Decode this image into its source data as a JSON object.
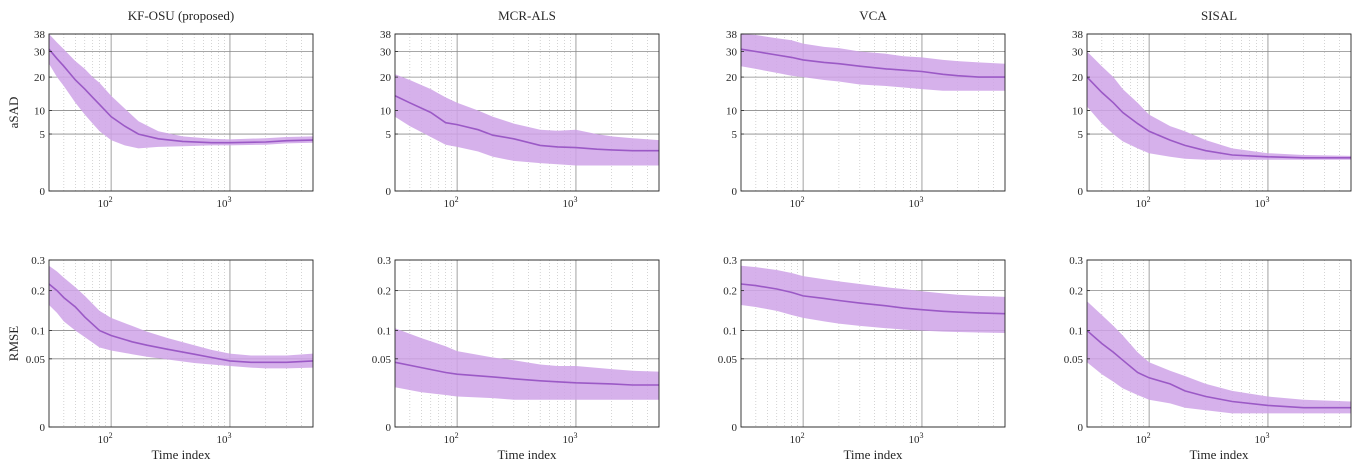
{
  "figure": {
    "xlabel": "Time index",
    "row_labels": [
      "aSAD",
      "RMSE"
    ]
  },
  "colors": {
    "band": "#cfa3e8",
    "line": "#9b59c6",
    "grid_major": "#8a8a8a",
    "grid_minor": "#b8b8b8",
    "axis": "#262626"
  },
  "chart_data": [
    {
      "type": "area",
      "title": "KF-OSU (proposed)",
      "ylabel": "aSAD",
      "xlabel": "",
      "x_scale": "log",
      "xlim": [
        30,
        5000
      ],
      "ylim": [
        0,
        38
      ],
      "y_scale": "sqrt",
      "yticks": [
        0,
        5,
        10,
        20,
        30,
        38
      ],
      "xtick_labels": [
        "10^2",
        "10^3"
      ],
      "grid": true,
      "series": [
        {
          "x": [
            30,
            35,
            40,
            50,
            60,
            70,
            80,
            100,
            130,
            170,
            250,
            400,
            700,
            1000,
            2000,
            3000,
            5000
          ],
          "mean": [
            31,
            27,
            24,
            19,
            16,
            13.5,
            11.5,
            8.5,
            6.5,
            5,
            4.2,
            3.8,
            3.6,
            3.6,
            3.7,
            3.9,
            4.0
          ],
          "lower": [
            25,
            20,
            17,
            12,
            9,
            7,
            5.5,
            4,
            3.2,
            2.8,
            3,
            3.1,
            3.2,
            3.2,
            3.3,
            3.5,
            3.6
          ],
          "upper": [
            38,
            34,
            31,
            26,
            23,
            20,
            18,
            14,
            10.5,
            7.5,
            5.5,
            4.6,
            4.2,
            4.1,
            4.3,
            4.5,
            4.6
          ]
        }
      ]
    },
    {
      "type": "area",
      "title": "MCR-ALS",
      "ylabel": "",
      "xlabel": "",
      "x_scale": "log",
      "xlim": [
        30,
        5000
      ],
      "ylim": [
        0,
        38
      ],
      "y_scale": "sqrt",
      "yticks": [
        0,
        5,
        10,
        20,
        30,
        38
      ],
      "xtick_labels": [
        "10^2",
        "10^3"
      ],
      "grid": true,
      "series": [
        {
          "x": [
            30,
            40,
            60,
            80,
            100,
            150,
            200,
            300,
            500,
            700,
            1000,
            1500,
            2000,
            3000,
            5000
          ],
          "mean": [
            14,
            12,
            9.5,
            7.2,
            6.8,
            5.8,
            4.8,
            4.2,
            3.2,
            3.0,
            2.9,
            2.7,
            2.6,
            2.5,
            2.5
          ],
          "lower": [
            8.5,
            6.5,
            4.5,
            3.3,
            3.0,
            2.4,
            1.8,
            1.4,
            1.2,
            1.1,
            1.0,
            1.0,
            1.0,
            1.0,
            1.0
          ],
          "upper": [
            21,
            19,
            16,
            13.5,
            12,
            10,
            8.5,
            7,
            5.8,
            5.6,
            5.8,
            5.0,
            4.6,
            4.3,
            4.0
          ]
        }
      ]
    },
    {
      "type": "area",
      "title": "VCA",
      "ylabel": "",
      "xlabel": "",
      "x_scale": "log",
      "xlim": [
        30,
        5000
      ],
      "ylim": [
        0,
        38
      ],
      "y_scale": "sqrt",
      "yticks": [
        0,
        5,
        10,
        20,
        30,
        38
      ],
      "xtick_labels": [
        "10^2",
        "10^3"
      ],
      "grid": true,
      "series": [
        {
          "x": [
            30,
            40,
            60,
            80,
            100,
            150,
            200,
            300,
            500,
            700,
            1000,
            1500,
            2000,
            3000,
            5000
          ],
          "mean": [
            31,
            30,
            28.5,
            27.5,
            26.5,
            25.5,
            25,
            24,
            23,
            22.5,
            22,
            21,
            20.5,
            20,
            20
          ],
          "lower": [
            24,
            23,
            21.5,
            20.5,
            20,
            19,
            18.5,
            17.5,
            17,
            16.5,
            16,
            15.5,
            15.5,
            15.5,
            15.5
          ],
          "upper": [
            38,
            37.5,
            36,
            35,
            33.5,
            32,
            31.5,
            30,
            29,
            28,
            27.5,
            26.5,
            26,
            25.5,
            25
          ]
        }
      ]
    },
    {
      "type": "area",
      "title": "SISAL",
      "ylabel": "",
      "xlabel": "",
      "x_scale": "log",
      "xlim": [
        30,
        5000
      ],
      "ylim": [
        0,
        38
      ],
      "y_scale": "sqrt",
      "yticks": [
        0,
        5,
        10,
        20,
        30,
        38
      ],
      "xtick_labels": [
        "10^2",
        "10^3"
      ],
      "grid": true,
      "series": [
        {
          "x": [
            30,
            40,
            50,
            60,
            80,
            100,
            150,
            200,
            300,
            500,
            1000,
            2000,
            5000
          ],
          "mean": [
            20,
            15,
            12,
            9.5,
            7,
            5.5,
            4,
            3.2,
            2.5,
            2.0,
            1.8,
            1.7,
            1.7
          ],
          "lower": [
            11,
            7,
            5,
            3.8,
            2.8,
            2.2,
            1.8,
            1.6,
            1.5,
            1.5,
            1.5,
            1.5,
            1.5
          ],
          "upper": [
            30,
            24,
            20,
            16,
            12,
            9,
            6.5,
            5.5,
            4,
            2.8,
            2.2,
            2.0,
            1.9
          ]
        }
      ]
    },
    {
      "type": "area",
      "title": "",
      "ylabel": "RMSE",
      "xlabel": "Time index",
      "x_scale": "log",
      "xlim": [
        30,
        5000
      ],
      "ylim": [
        0,
        0.3
      ],
      "y_scale": "sqrt",
      "yticks": [
        0,
        0.05,
        0.1,
        0.2,
        0.3
      ],
      "xtick_labels": [
        "10^2",
        "10^3"
      ],
      "grid": true,
      "series": [
        {
          "x": [
            30,
            35,
            40,
            50,
            60,
            80,
            100,
            150,
            200,
            300,
            500,
            700,
            1000,
            1500,
            2000,
            3000,
            5000
          ],
          "mean": [
            0.22,
            0.2,
            0.18,
            0.155,
            0.13,
            0.1,
            0.09,
            0.078,
            0.072,
            0.065,
            0.057,
            0.052,
            0.047,
            0.045,
            0.045,
            0.045,
            0.047
          ],
          "lower": [
            0.16,
            0.14,
            0.12,
            0.1,
            0.087,
            0.068,
            0.063,
            0.057,
            0.053,
            0.049,
            0.044,
            0.042,
            0.04,
            0.038,
            0.037,
            0.037,
            0.038
          ],
          "upper": [
            0.28,
            0.26,
            0.24,
            0.21,
            0.185,
            0.145,
            0.128,
            0.11,
            0.098,
            0.085,
            0.072,
            0.064,
            0.058,
            0.055,
            0.055,
            0.055,
            0.058
          ]
        }
      ]
    },
    {
      "type": "area",
      "title": "",
      "ylabel": "",
      "xlabel": "Time index",
      "x_scale": "log",
      "xlim": [
        30,
        5000
      ],
      "ylim": [
        0,
        0.3
      ],
      "y_scale": "sqrt",
      "yticks": [
        0,
        0.05,
        0.1,
        0.2,
        0.3
      ],
      "xtick_labels": [
        "10^2",
        "10^3"
      ],
      "grid": true,
      "series": [
        {
          "x": [
            30,
            50,
            80,
            100,
            200,
            300,
            500,
            700,
            1000,
            2000,
            3000,
            5000
          ],
          "mean": [
            0.045,
            0.038,
            0.032,
            0.03,
            0.027,
            0.025,
            0.023,
            0.022,
            0.021,
            0.02,
            0.019,
            0.019
          ],
          "lower": [
            0.017,
            0.013,
            0.011,
            0.01,
            0.009,
            0.008,
            0.008,
            0.008,
            0.008,
            0.008,
            0.008,
            0.008
          ],
          "upper": [
            0.105,
            0.085,
            0.07,
            0.062,
            0.052,
            0.048,
            0.042,
            0.04,
            0.04,
            0.036,
            0.034,
            0.033
          ]
        }
      ]
    },
    {
      "type": "area",
      "title": "",
      "ylabel": "",
      "xlabel": "Time index",
      "x_scale": "log",
      "xlim": [
        30,
        5000
      ],
      "ylim": [
        0,
        0.3
      ],
      "y_scale": "sqrt",
      "yticks": [
        0,
        0.05,
        0.1,
        0.2,
        0.3
      ],
      "xtick_labels": [
        "10^2",
        "10^3"
      ],
      "grid": true,
      "series": [
        {
          "x": [
            30,
            40,
            60,
            80,
            100,
            150,
            200,
            300,
            500,
            700,
            1000,
            1500,
            2000,
            3000,
            5000
          ],
          "mean": [
            0.22,
            0.215,
            0.205,
            0.195,
            0.185,
            0.178,
            0.172,
            0.165,
            0.158,
            0.152,
            0.148,
            0.144,
            0.142,
            0.14,
            0.138
          ],
          "lower": [
            0.16,
            0.155,
            0.145,
            0.135,
            0.128,
            0.12,
            0.115,
            0.11,
            0.105,
            0.102,
            0.1,
            0.098,
            0.097,
            0.096,
            0.095
          ],
          "upper": [
            0.28,
            0.275,
            0.265,
            0.255,
            0.245,
            0.235,
            0.228,
            0.22,
            0.21,
            0.205,
            0.198,
            0.192,
            0.188,
            0.185,
            0.182
          ]
        }
      ]
    },
    {
      "type": "area",
      "title": "",
      "ylabel": "",
      "xlabel": "Time index",
      "x_scale": "log",
      "xlim": [
        30,
        5000
      ],
      "ylim": [
        0,
        0.3
      ],
      "y_scale": "sqrt",
      "yticks": [
        0,
        0.05,
        0.1,
        0.2,
        0.3
      ],
      "xtick_labels": [
        "10^2",
        "10^3"
      ],
      "grid": true,
      "series": [
        {
          "x": [
            30,
            40,
            50,
            60,
            80,
            100,
            150,
            200,
            300,
            500,
            1000,
            2000,
            5000
          ],
          "mean": [
            0.1,
            0.075,
            0.06,
            0.048,
            0.032,
            0.026,
            0.02,
            0.014,
            0.01,
            0.007,
            0.005,
            0.004,
            0.004
          ],
          "lower": [
            0.045,
            0.03,
            0.022,
            0.016,
            0.011,
            0.008,
            0.006,
            0.004,
            0.003,
            0.002,
            0.002,
            0.002,
            0.002
          ],
          "upper": [
            0.17,
            0.135,
            0.11,
            0.09,
            0.06,
            0.045,
            0.034,
            0.028,
            0.02,
            0.014,
            0.01,
            0.008,
            0.007
          ]
        }
      ]
    }
  ]
}
